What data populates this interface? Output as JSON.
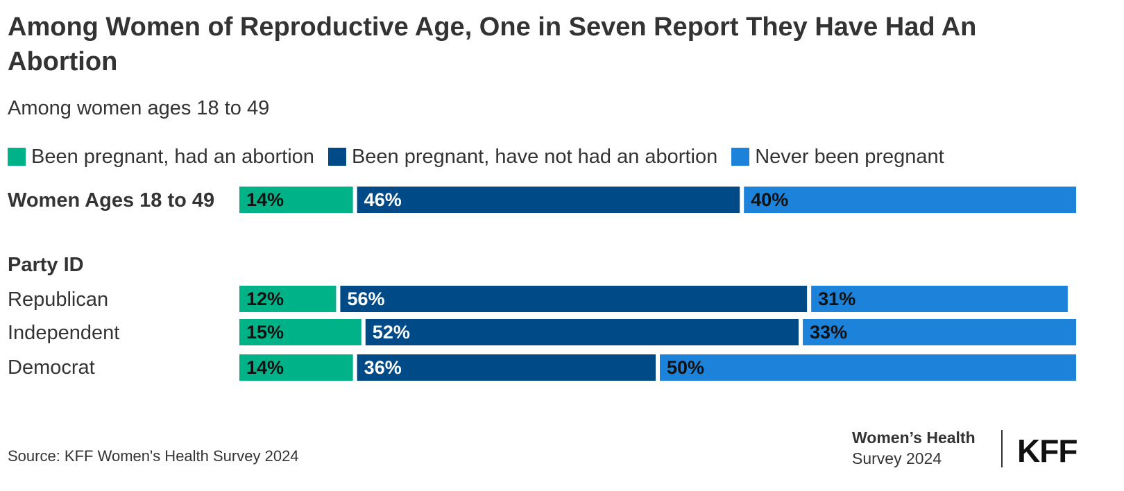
{
  "chart_data": {
    "type": "bar",
    "orientation": "horizontal",
    "stacked": true,
    "title": "Among Women of Reproductive Age, One in Seven Report They Have Had An Abortion",
    "subtitle": "Among women ages 18 to 49",
    "legend": [
      {
        "name": "Been pregnant, had an abortion",
        "color": "#00b288"
      },
      {
        "name": "Been pregnant, have not had an abortion",
        "color": "#004a87"
      },
      {
        "name": "Never been pregnant",
        "color": "#1d82d9"
      }
    ],
    "group_label": "Party ID",
    "categories": [
      "Women Ages 18 to 49",
      "Republican",
      "Independent",
      "Democrat"
    ],
    "series": [
      {
        "name": "Been pregnant, had an abortion",
        "values": [
          14,
          12,
          15,
          14
        ],
        "labels": [
          "14%",
          "12%",
          "15%",
          "14%"
        ]
      },
      {
        "name": "Been pregnant, have not had an abortion",
        "values": [
          46,
          56,
          52,
          36
        ],
        "labels": [
          "46%",
          "56%",
          "52%",
          "36%"
        ]
      },
      {
        "name": "Never been pregnant",
        "values": [
          40,
          31,
          33,
          50
        ],
        "labels": [
          "40%",
          "31%",
          "33%",
          "50%"
        ]
      }
    ],
    "xlim": [
      0,
      100
    ],
    "xlabel": "",
    "ylabel": ""
  },
  "colors": {
    "had_abortion": "#00b288",
    "no_abortion": "#004a87",
    "never_pregnant": "#1d82d9",
    "label_dark": "#111111",
    "label_light": "#ffffff"
  },
  "source": "Source: KFF Women's Health Survey 2024",
  "brand": {
    "line1": "Women’s Health",
    "line2": "Survey 2024",
    "logo": "KFF"
  }
}
